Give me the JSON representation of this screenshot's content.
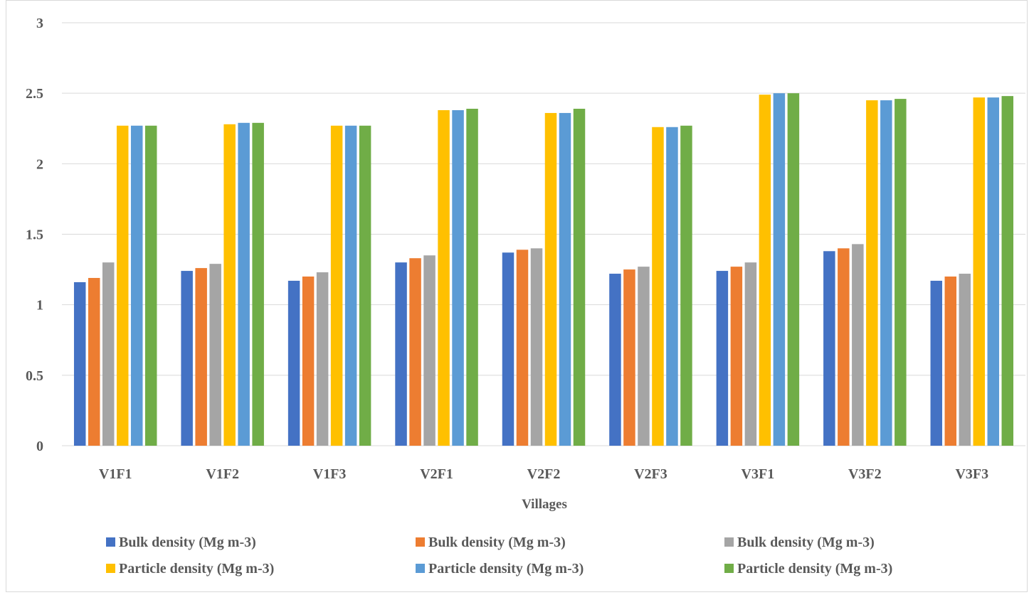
{
  "chart_data": {
    "type": "bar",
    "xlabel": "Villages",
    "ylabel": "",
    "ylim": [
      0,
      3
    ],
    "yticks": [
      "0",
      "0.5",
      "1",
      "1.5",
      "2",
      "2.5",
      "3"
    ],
    "grid": true,
    "legend_position": "bottom",
    "categories": [
      "V1F1",
      "V1F2",
      "V1F3",
      "V2F1",
      "V2F2",
      "V2F3",
      "V3F1",
      "V3F2",
      "V3F3"
    ],
    "series": [
      {
        "name": "Bulk density (Mg m-3)",
        "color": "#4472c4",
        "values": [
          1.16,
          1.24,
          1.17,
          1.3,
          1.37,
          1.22,
          1.24,
          1.38,
          1.17
        ]
      },
      {
        "name": "Bulk density (Mg m-3)",
        "color": "#ed7d31",
        "values": [
          1.19,
          1.26,
          1.2,
          1.33,
          1.39,
          1.25,
          1.27,
          1.4,
          1.2
        ]
      },
      {
        "name": "Bulk density (Mg m-3)",
        "color": "#a5a5a5",
        "values": [
          1.3,
          1.29,
          1.23,
          1.35,
          1.4,
          1.27,
          1.3,
          1.43,
          1.22
        ]
      },
      {
        "name": "Particle density (Mg m-3)",
        "color": "#ffc000",
        "values": [
          2.27,
          2.28,
          2.27,
          2.38,
          2.36,
          2.26,
          2.49,
          2.45,
          2.47
        ]
      },
      {
        "name": "Particle density (Mg m-3)",
        "color": "#5b9bd5",
        "values": [
          2.27,
          2.29,
          2.27,
          2.38,
          2.36,
          2.26,
          2.5,
          2.45,
          2.47
        ]
      },
      {
        "name": "Particle density (Mg m-3)",
        "color": "#70ad47",
        "values": [
          2.27,
          2.29,
          2.27,
          2.39,
          2.39,
          2.27,
          2.5,
          2.46,
          2.48
        ]
      }
    ]
  }
}
